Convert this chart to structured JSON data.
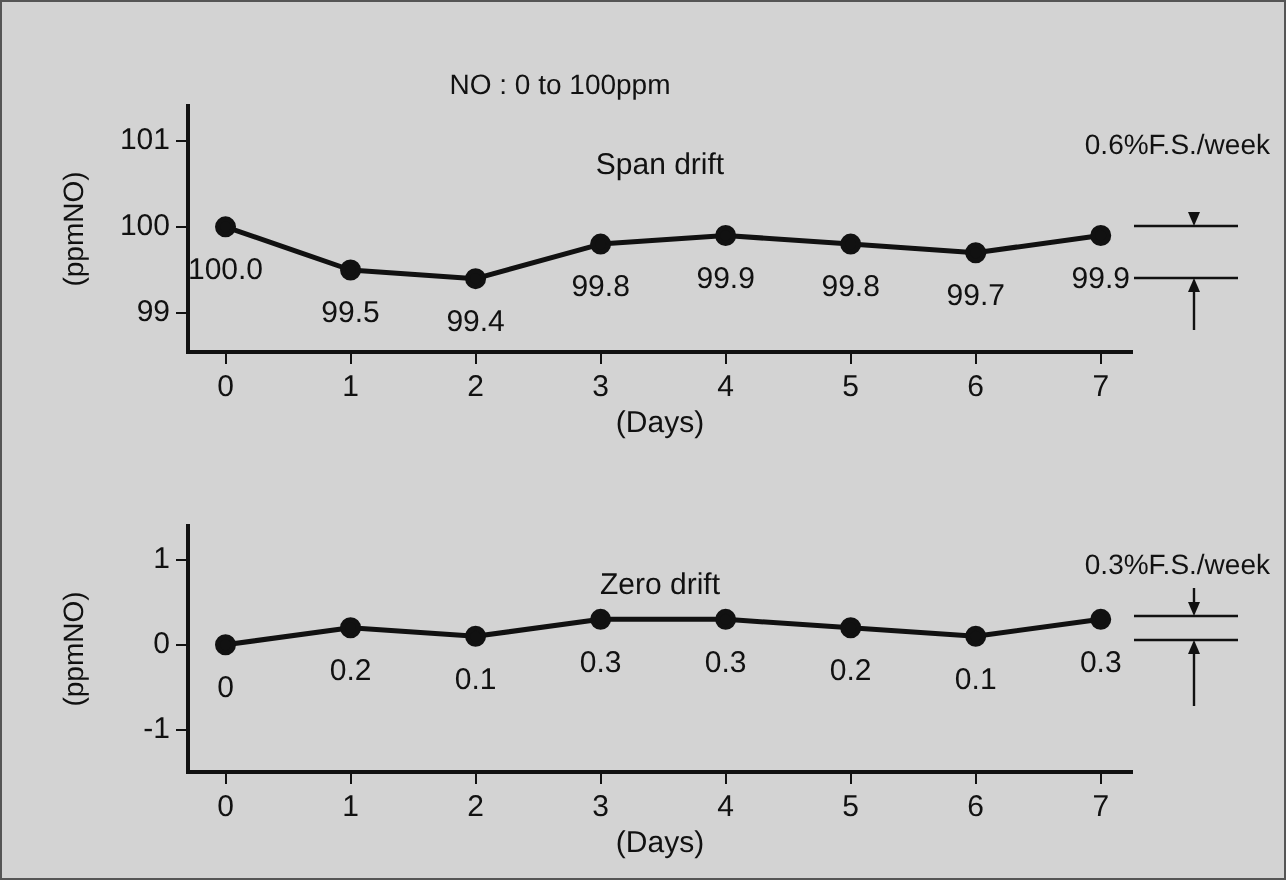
{
  "chart_data": [
    {
      "type": "line",
      "title": "Span drift",
      "xlabel": "(Days)",
      "ylabel": "(ppmNO)",
      "annotations": [
        "NO : 0 to 100ppm",
        "0.6%F.S./week"
      ],
      "x": [
        0,
        1,
        2,
        3,
        4,
        5,
        6,
        7
      ],
      "series": [
        {
          "color": "#111111",
          "values": [
            100.0,
            99.5,
            99.4,
            99.8,
            99.9,
            99.8,
            99.7,
            99.9
          ],
          "value_labels": [
            "100.0",
            "99.5",
            "99.4",
            "99.8",
            "99.9",
            "99.8",
            "99.7",
            "99.9"
          ]
        }
      ],
      "xlim": [
        -0.3,
        7.25
      ],
      "xticks": [
        0,
        1,
        2,
        3,
        4,
        5,
        6,
        7
      ],
      "ylim": [
        98.55,
        101.4
      ],
      "yticks": [
        99,
        100,
        101
      ],
      "grid": false,
      "legend": false,
      "marker": "circle",
      "line_style": "solid"
    },
    {
      "type": "line",
      "title": "Zero drift",
      "xlabel": "(Days)",
      "ylabel": "(ppmNO)",
      "annotations": [
        "0.3%F.S./week"
      ],
      "x": [
        0,
        1,
        2,
        3,
        4,
        5,
        6,
        7
      ],
      "series": [
        {
          "color": "#111111",
          "values": [
            0,
            0.2,
            0.1,
            0.3,
            0.3,
            0.2,
            0.1,
            0.3
          ],
          "value_labels": [
            "0",
            "0.2",
            "0.1",
            "0.3",
            "0.3",
            "0.2",
            "0.1",
            "0.3"
          ]
        }
      ],
      "xlim": [
        -0.3,
        7.25
      ],
      "xticks": [
        0,
        1,
        2,
        3,
        4,
        5,
        6,
        7
      ],
      "ylim": [
        -1.5,
        1.4
      ],
      "yticks": [
        -1,
        0,
        1
      ],
      "grid": false,
      "legend": false,
      "marker": "circle",
      "line_style": "solid"
    }
  ]
}
